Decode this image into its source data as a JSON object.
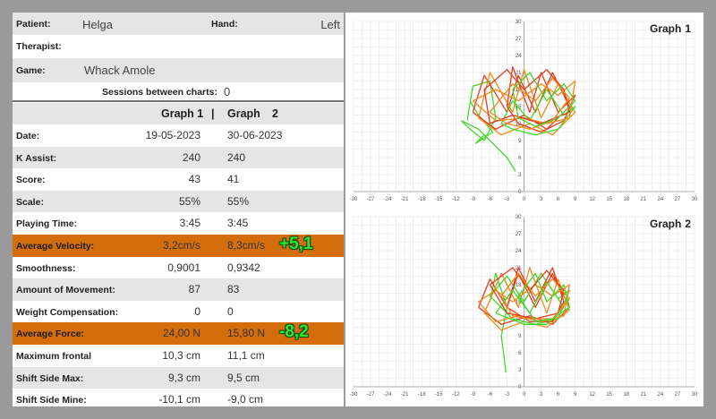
{
  "info": {
    "patient_label": "Patient:",
    "patient_value": "Helga",
    "hand_label": "Hand:",
    "hand_value": "Left",
    "therapist_label": "Therapist:",
    "game_label": "Game:",
    "game_value": "Whack Amole",
    "sessions_label": "Sessions between charts:",
    "sessions_value": "0"
  },
  "table": {
    "col1_header": "Graph 1",
    "divider": "|",
    "col2_header": "Graph",
    "col2_header_num": "2",
    "rows": [
      {
        "label": "Date:",
        "v1": "19-05-2023",
        "v2": "30-06-2023"
      },
      {
        "label": "K Assist:",
        "v1": "240",
        "v2": "240"
      },
      {
        "label": "Score:",
        "v1": "43",
        "v2": "41"
      },
      {
        "label": "Scale:",
        "v1": "55%",
        "v2": "55%"
      },
      {
        "label": "Playing Time:",
        "v1": "3:45",
        "v2": "3:45"
      },
      {
        "label": "Average Velocity:",
        "v1": "3,2cm/s",
        "v2": "8,3cm/s",
        "delta": "+5,1"
      },
      {
        "label": "Smoothness:",
        "v1": "0,9001",
        "v2": "0,9342"
      },
      {
        "label": "Amount of Movement:",
        "v1": "87",
        "v2": "83"
      },
      {
        "label": "Weight Compensation:",
        "v1": "0",
        "v2": "0"
      },
      {
        "label": "Average Force:",
        "v1": "24,00 N",
        "v2": "15,80 N",
        "delta": "-8,2"
      },
      {
        "label": "Maximum frontal",
        "v1": "10,3 cm",
        "v2": "11,1 cm"
      },
      {
        "label": "Shift Side Max:",
        "v1": "9,3 cm",
        "v2": "9,5 cm"
      },
      {
        "label": "Shift Side Mine:",
        "v1": "-10,1 cm",
        "v2": "-9,0 cm"
      }
    ]
  },
  "colors": {
    "highlight": "#d46d0c",
    "delta_text": "#2ee62e",
    "trace_red": "#e53b1c",
    "trace_orange": "#f08a1a",
    "trace_green": "#3fd82a"
  },
  "chart_data": [
    {
      "type": "line",
      "title": "Graph",
      "title_num": "1",
      "x_ticks": [
        "-30",
        "-27",
        "-24",
        "-21",
        "-18",
        "-15",
        "-12",
        "-9",
        "-6",
        "-3",
        "0",
        "3",
        "6",
        "9",
        "12",
        "15",
        "18",
        "21",
        "24",
        "27",
        "30"
      ],
      "y_ticks": [
        "30",
        "27",
        "24",
        "21",
        "18",
        "15",
        "12",
        "9",
        "6",
        "3",
        "0"
      ],
      "y_tick_values": [
        30,
        27,
        24,
        21,
        18,
        15,
        12,
        9,
        6,
        3,
        0
      ],
      "xlim": [
        -30,
        30
      ],
      "ylim": [
        0,
        30
      ],
      "grid": true,
      "series": [
        {
          "color": "#3fd82a",
          "points": [
            [
              -10,
              12.5
            ],
            [
              -9,
              18.6
            ],
            [
              -6,
              19.5
            ],
            [
              -5,
              13
            ],
            [
              -7,
              9
            ],
            [
              -9.5,
              11
            ],
            [
              -11,
              12.5
            ],
            [
              -8,
              11
            ],
            [
              -3,
              6
            ],
            [
              -1.5,
              3.6
            ]
          ]
        },
        {
          "color": "#3fd82a",
          "points": [
            [
              -7,
              10
            ],
            [
              -8.5,
              8.5
            ],
            [
              -5.5,
              10.5
            ],
            [
              -8,
              13.5
            ],
            [
              -9.5,
              16
            ]
          ]
        },
        {
          "color": "#e53b1c",
          "points": [
            [
              -9,
              14
            ],
            [
              -7,
              20.5
            ],
            [
              -3,
              14
            ],
            [
              -1,
              20.5
            ],
            [
              2,
              14
            ],
            [
              5,
              21
            ],
            [
              8,
              15
            ],
            [
              4,
              11
            ],
            [
              0,
              13.5
            ],
            [
              -5,
              11
            ],
            [
              -9,
              14
            ]
          ]
        },
        {
          "color": "#f08a1a",
          "points": [
            [
              -8,
              13
            ],
            [
              -6,
              21
            ],
            [
              -2,
              14
            ],
            [
              0,
              21.5
            ],
            [
              3,
              13
            ],
            [
              6,
              19
            ],
            [
              9,
              14
            ],
            [
              5,
              10
            ],
            [
              1,
              12
            ],
            [
              -4,
              10
            ],
            [
              -8,
              13
            ]
          ]
        },
        {
          "color": "#e53b1c",
          "points": [
            [
              -3,
              15
            ],
            [
              -2,
              22
            ],
            [
              1,
              14
            ],
            [
              3,
              21
            ],
            [
              6,
              14
            ],
            [
              9,
              17
            ],
            [
              7,
              12.5
            ],
            [
              3,
              10.5
            ],
            [
              -1,
              12
            ],
            [
              -3,
              15
            ]
          ]
        },
        {
          "color": "#3fd82a",
          "points": [
            [
              -4,
              12
            ],
            [
              -2,
              16
            ],
            [
              1,
              12.5
            ],
            [
              4,
              18
            ],
            [
              7,
              13.5
            ],
            [
              9,
              15
            ],
            [
              6,
              11
            ],
            [
              2,
              10
            ],
            [
              -2,
              11
            ],
            [
              -4,
              12
            ]
          ]
        },
        {
          "color": "#f08a1a",
          "points": [
            [
              -9,
              16
            ],
            [
              -5,
              18
            ],
            [
              -1,
              16
            ],
            [
              3,
              19
            ],
            [
              6,
              17
            ],
            [
              9,
              19.5
            ],
            [
              8,
              13
            ],
            [
              4,
              12
            ],
            [
              0,
              13
            ],
            [
              -5,
              12.5
            ],
            [
              -9,
              16
            ]
          ]
        },
        {
          "color": "#e53b1c",
          "points": [
            [
              -7,
              18
            ],
            [
              -3,
              21.5
            ],
            [
              0,
              18
            ],
            [
              4,
              21.5
            ],
            [
              7,
              18
            ],
            [
              8,
              14
            ],
            [
              3,
              12
            ],
            [
              -2,
              13.5
            ],
            [
              -6,
              12
            ],
            [
              -7,
              18
            ]
          ]
        },
        {
          "color": "#f08a1a",
          "points": [
            [
              -6,
              14
            ],
            [
              -2,
              19
            ],
            [
              2,
              16
            ],
            [
              5,
              20
            ],
            [
              8,
              16.5
            ],
            [
              5,
              12.5
            ],
            [
              1,
              11
            ],
            [
              -3,
              12
            ],
            [
              -6,
              14
            ]
          ]
        },
        {
          "color": "#3fd82a",
          "points": [
            [
              -2,
              18
            ],
            [
              1,
              21
            ],
            [
              4,
              16
            ],
            [
              7,
              19
            ],
            [
              9,
              16
            ],
            [
              6,
              13
            ],
            [
              2,
              11.5
            ],
            [
              -1,
              13
            ],
            [
              -2,
              18
            ]
          ]
        }
      ]
    },
    {
      "type": "line",
      "title": "Graph",
      "title_num": "2",
      "x_ticks": [
        "-30",
        "-27",
        "-24",
        "-21",
        "-18",
        "-15",
        "-12",
        "-9",
        "-6",
        "-3",
        "0",
        "3",
        "6",
        "9",
        "12",
        "15",
        "18",
        "21",
        "24",
        "27",
        "30"
      ],
      "y_ticks": [
        "30",
        "27",
        "24",
        "21",
        "18",
        "15",
        "12",
        "9",
        "6",
        "3",
        "0"
      ],
      "y_tick_values": [
        30,
        27,
        24,
        21,
        18,
        15,
        12,
        9,
        6,
        3,
        0
      ],
      "xlim": [
        -30,
        30
      ],
      "ylim": [
        0,
        30
      ],
      "grid": true,
      "series": [
        {
          "color": "#3fd82a",
          "points": [
            [
              -6,
              15
            ],
            [
              -5,
              20
            ],
            [
              -3,
              14
            ],
            [
              -4,
              9
            ],
            [
              -3.5,
              5
            ],
            [
              -3.2,
              2.5
            ]
          ]
        },
        {
          "color": "#e53b1c",
          "points": [
            [
              -8,
              14
            ],
            [
              -6,
              19
            ],
            [
              -3,
              14
            ],
            [
              -1,
              20
            ],
            [
              2,
              14
            ],
            [
              5,
              20
            ],
            [
              8,
              14
            ],
            [
              5,
              11
            ],
            [
              1,
              12.5
            ],
            [
              -4,
              11
            ],
            [
              -8,
              14
            ]
          ]
        },
        {
          "color": "#f08a1a",
          "points": [
            [
              -7,
              13
            ],
            [
              -4,
              20
            ],
            [
              -1,
              14
            ],
            [
              1,
              21
            ],
            [
              4,
              13
            ],
            [
              6,
              19
            ],
            [
              8,
              13.5
            ],
            [
              4,
              10.5
            ],
            [
              0,
              11.5
            ],
            [
              -4,
              10
            ],
            [
              -7,
              13
            ]
          ]
        },
        {
          "color": "#3fd82a",
          "points": [
            [
              -6,
              16
            ],
            [
              -3,
              19.5
            ],
            [
              0,
              15
            ],
            [
              3,
              20
            ],
            [
              6,
              15.5
            ],
            [
              8,
              17
            ],
            [
              6,
              12
            ],
            [
              2,
              11
            ],
            [
              -2,
              12
            ],
            [
              -6,
              16
            ]
          ]
        },
        {
          "color": "#e53b1c",
          "points": [
            [
              -3,
              14
            ],
            [
              -1,
              21
            ],
            [
              2,
              15
            ],
            [
              5,
              21
            ],
            [
              7,
              15
            ],
            [
              5,
              11.5
            ],
            [
              1,
              11.5
            ],
            [
              -3,
              14
            ]
          ]
        },
        {
          "color": "#f08a1a",
          "points": [
            [
              -8,
              15
            ],
            [
              -5,
              17
            ],
            [
              -2,
              15
            ],
            [
              2,
              18
            ],
            [
              5,
              16
            ],
            [
              8,
              18
            ],
            [
              7,
              12.5
            ],
            [
              3,
              11.5
            ],
            [
              -1,
              12.5
            ],
            [
              -5,
              11.5
            ],
            [
              -8,
              15
            ]
          ]
        },
        {
          "color": "#3fd82a",
          "points": [
            [
              -5,
              13
            ],
            [
              -2,
              17
            ],
            [
              1,
              13
            ],
            [
              4,
              18.5
            ],
            [
              7,
              14
            ],
            [
              4,
              11
            ],
            [
              0,
              11
            ],
            [
              -5,
              13
            ]
          ]
        },
        {
          "color": "#e53b1c",
          "points": [
            [
              -6,
              18
            ],
            [
              -2,
              21
            ],
            [
              1,
              17
            ],
            [
              4,
              20.5
            ],
            [
              7,
              17
            ],
            [
              6,
              13
            ],
            [
              2,
              12
            ],
            [
              -3,
              13
            ],
            [
              -6,
              18
            ]
          ]
        },
        {
          "color": "#f08a1a",
          "points": [
            [
              -4,
              16
            ],
            [
              -1,
              20
            ],
            [
              2,
              16
            ],
            [
              5,
              19
            ],
            [
              8,
              15.5
            ],
            [
              5,
              12
            ],
            [
              1,
              12
            ],
            [
              -2,
              12.5
            ],
            [
              -4,
              16
            ]
          ]
        },
        {
          "color": "#3fd82a",
          "points": [
            [
              -1,
              16
            ],
            [
              2,
              20
            ],
            [
              4,
              15
            ],
            [
              7,
              18
            ],
            [
              8,
              14
            ],
            [
              5,
              12
            ],
            [
              2,
              11.5
            ],
            [
              -1,
              16
            ]
          ]
        }
      ]
    }
  ]
}
